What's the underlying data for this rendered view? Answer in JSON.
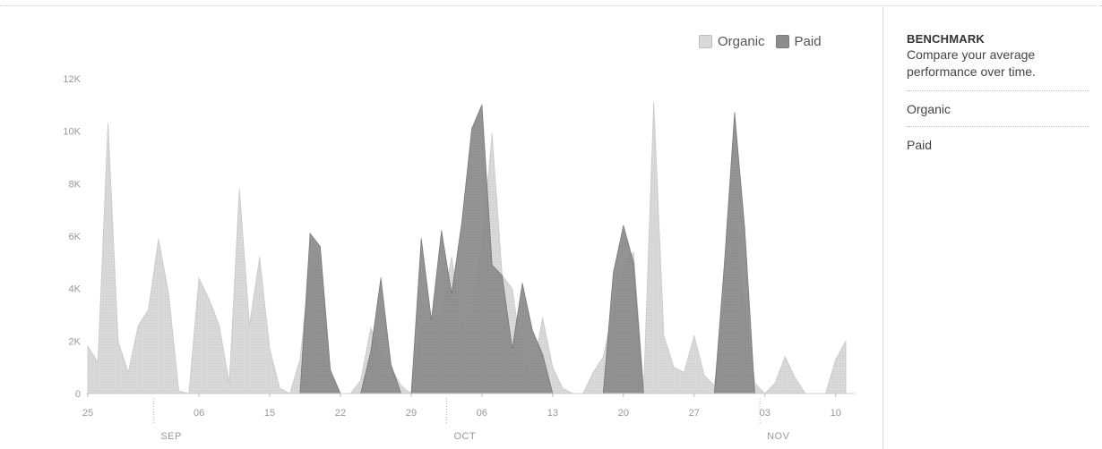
{
  "legend": [
    {
      "label": "Organic",
      "color": "#d9d9d9"
    },
    {
      "label": "Paid",
      "color": "#8c8c8c"
    }
  ],
  "benchmark": {
    "title": "BENCHMARK",
    "description": "Compare your average performance over time.",
    "options": [
      "Organic",
      "Paid"
    ]
  },
  "chart_data": {
    "type": "area",
    "title": "",
    "xlabel": "",
    "ylabel": "",
    "ylim": [
      0,
      12000
    ],
    "y_ticks": [
      {
        "value": 0,
        "label": "0"
      },
      {
        "value": 2000,
        "label": "2K"
      },
      {
        "value": 4000,
        "label": "4K"
      },
      {
        "value": 6000,
        "label": "6K"
      },
      {
        "value": 8000,
        "label": "8K"
      },
      {
        "value": 10000,
        "label": "10K"
      },
      {
        "value": 12000,
        "label": "12K"
      }
    ],
    "x_ticks": [
      {
        "day": 0,
        "label": "25"
      },
      {
        "day": 11,
        "label": "06"
      },
      {
        "day": 18,
        "label": "15"
      },
      {
        "day": 25,
        "label": "22"
      },
      {
        "day": 32,
        "label": "29"
      },
      {
        "day": 39,
        "label": "06"
      },
      {
        "day": 46,
        "label": "13"
      },
      {
        "day": 53,
        "label": "20"
      },
      {
        "day": 60,
        "label": "27"
      },
      {
        "day": 67,
        "label": "03"
      },
      {
        "day": 74,
        "label": "10"
      }
    ],
    "month_marks": [
      {
        "day": 6.5,
        "label": "SEP"
      },
      {
        "day": 35.5,
        "label": "OCT"
      },
      {
        "day": 66.5,
        "label": "NOV"
      }
    ],
    "grid": false,
    "legend_position": "top-right",
    "x": [
      0,
      1,
      2,
      3,
      4,
      5,
      6,
      7,
      8,
      9,
      10,
      11,
      12,
      13,
      14,
      15,
      16,
      17,
      18,
      19,
      20,
      21,
      22,
      23,
      24,
      25,
      26,
      27,
      28,
      29,
      30,
      31,
      32,
      33,
      34,
      35,
      36,
      37,
      38,
      39,
      40,
      41,
      42,
      43,
      44,
      45,
      46,
      47,
      48,
      49,
      50,
      51,
      52,
      53,
      54,
      55,
      56,
      57,
      58,
      59,
      60,
      61,
      62,
      63,
      64,
      65,
      66,
      67,
      68,
      69,
      70,
      71,
      72,
      73,
      74,
      75
    ],
    "series": [
      {
        "name": "Organic",
        "color": "#d9d9d9",
        "values": [
          1800,
          1200,
          10300,
          2000,
          800,
          2600,
          3200,
          5900,
          3800,
          100,
          0,
          4400,
          3600,
          2600,
          400,
          7800,
          2600,
          5200,
          1700,
          200,
          0,
          1300,
          5000,
          4800,
          600,
          0,
          0,
          500,
          2500,
          1600,
          1000,
          300,
          0,
          2500,
          2900,
          3000,
          5200,
          2600,
          3200,
          5600,
          9900,
          4500,
          4000,
          1300,
          700,
          2900,
          1000,
          200,
          0,
          0,
          800,
          1400,
          3200,
          4700,
          5400,
          200,
          11100,
          2200,
          1000,
          800,
          2200,
          700,
          300,
          3500,
          6300,
          3200,
          400,
          0,
          400,
          1400,
          600,
          0,
          0,
          0,
          1300,
          2000
        ]
      },
      {
        "name": "Paid",
        "color": "#8c8c8c",
        "values": [
          0,
          0,
          0,
          0,
          0,
          0,
          0,
          0,
          0,
          0,
          0,
          0,
          0,
          0,
          0,
          0,
          0,
          0,
          0,
          0,
          0,
          0,
          6100,
          5600,
          900,
          0,
          0,
          0,
          1600,
          4400,
          1100,
          0,
          0,
          5900,
          2800,
          6200,
          3800,
          6500,
          10100,
          11000,
          4900,
          4500,
          1700,
          4200,
          2400,
          1500,
          0,
          0,
          0,
          0,
          0,
          0,
          4600,
          6400,
          5000,
          0,
          0,
          0,
          0,
          0,
          0,
          0,
          0,
          5000,
          10700,
          6300,
          0,
          0,
          0,
          0,
          0,
          0,
          0,
          0,
          0,
          0
        ]
      }
    ]
  }
}
